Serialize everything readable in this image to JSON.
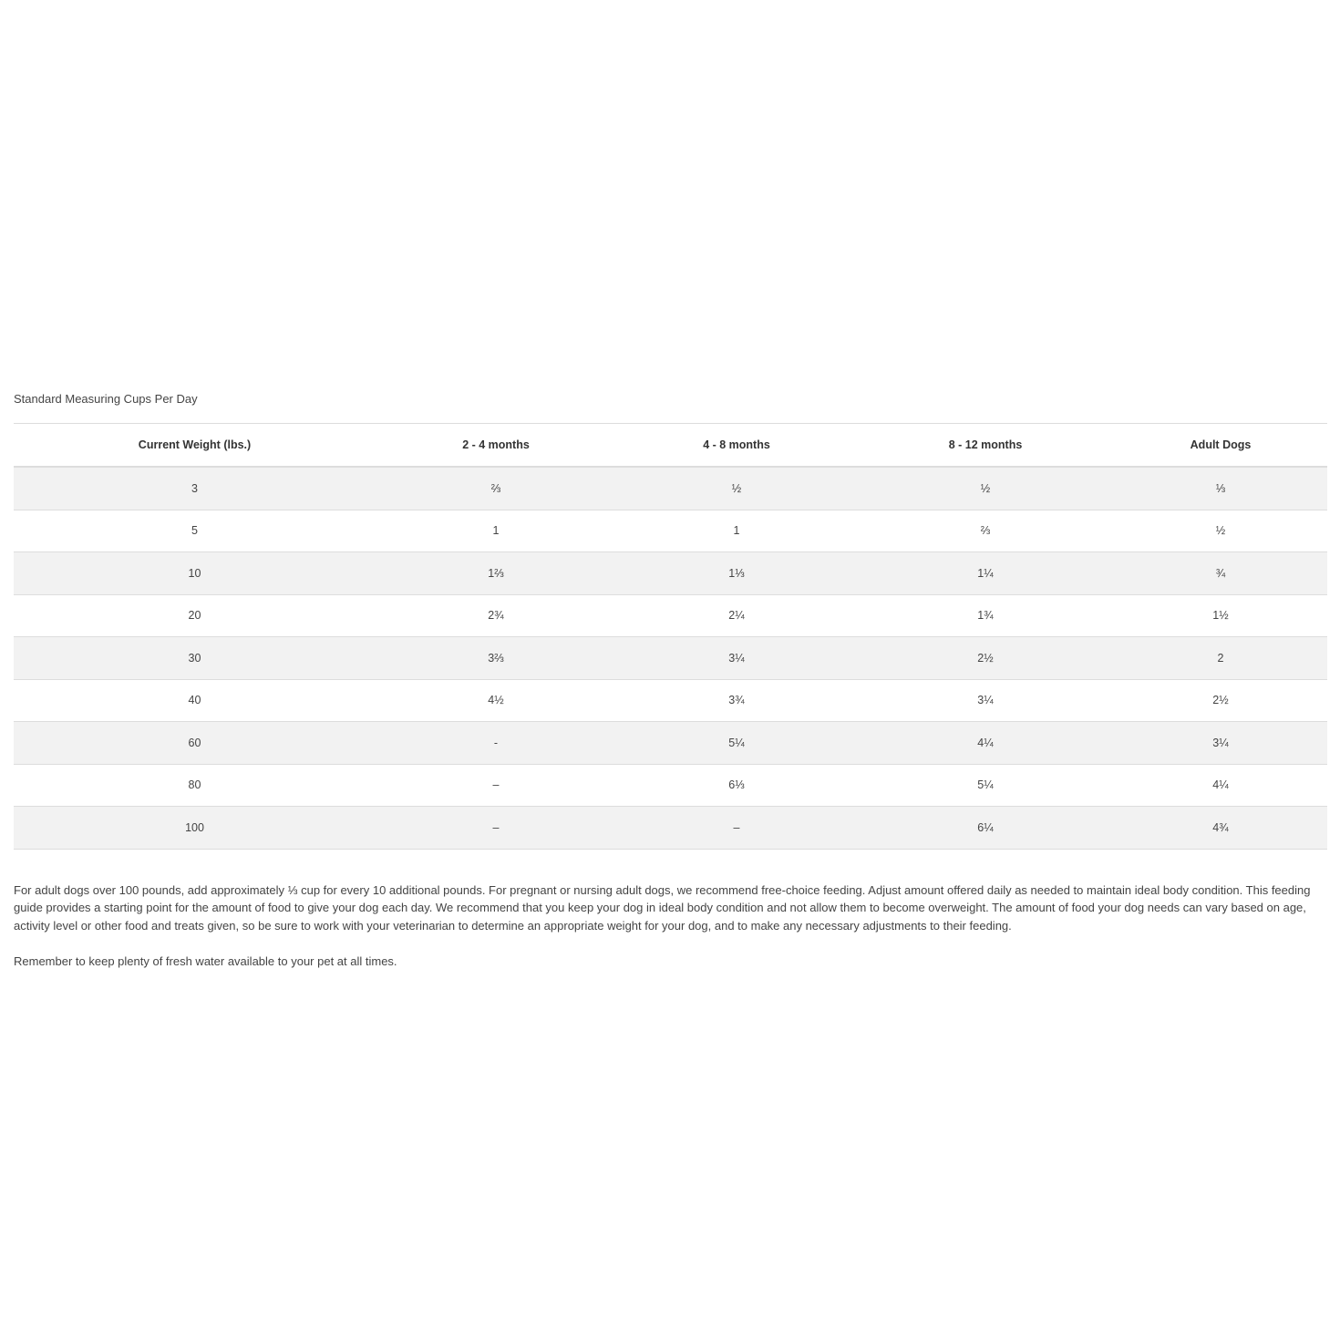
{
  "caption": "Standard Measuring Cups Per Day",
  "table": {
    "headers": [
      "Current Weight (lbs.)",
      "2 - 4 months",
      "4 - 8 months",
      "8 - 12 months",
      "Adult Dogs"
    ],
    "rows": [
      [
        "3",
        "⅔",
        "½",
        "½",
        "⅓"
      ],
      [
        "5",
        "1",
        "1",
        "⅔",
        "½"
      ],
      [
        "10",
        "1⅔",
        "1⅓",
        "1¼",
        "¾"
      ],
      [
        "20",
        "2¾",
        "2¼",
        "1¾",
        "1½"
      ],
      [
        "30",
        "3⅔",
        "3¼",
        "2½",
        "2"
      ],
      [
        "40",
        "4½",
        "3¾",
        "3¼",
        "2½"
      ],
      [
        "60",
        "-",
        "5¼",
        "4¼",
        "3¼"
      ],
      [
        "80",
        "–",
        "6⅓",
        "5¼",
        "4¼"
      ],
      [
        "100",
        "–",
        "–",
        "6¼",
        "4¾"
      ]
    ]
  },
  "notes": [
    "For adult dogs over 100 pounds, add approximately ⅓ cup for every 10 additional pounds. For pregnant or nursing adult dogs, we recommend free-choice feeding. Adjust amount offered daily as needed to maintain ideal body condition. This feeding guide provides a starting point for the amount of food to give your dog each day. We recommend that you keep your dog in ideal body condition and not allow them to become overweight. The amount of food your dog needs can vary based on age, activity level or other food and treats given, so be sure to work with your veterinarian to determine an appropriate weight for your dog, and to make any necessary adjustments to their feeding.",
    "Remember to keep plenty of fresh water available to your pet at all times."
  ]
}
